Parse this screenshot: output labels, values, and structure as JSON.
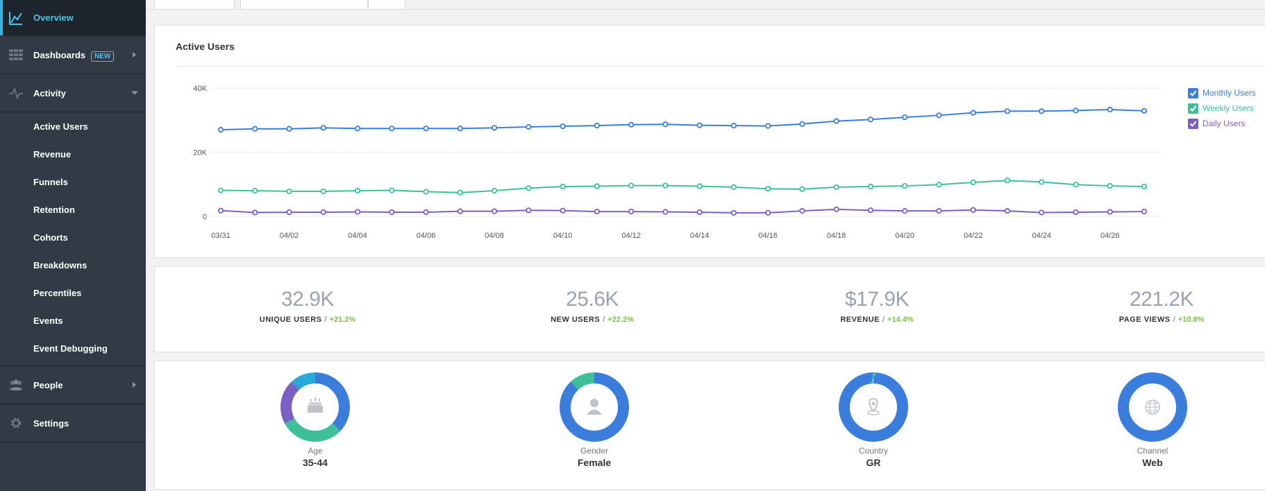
{
  "sidebar": {
    "overview": "Overview",
    "dashboards": "Dashboards",
    "dashboards_badge": "NEW",
    "activity": "Activity",
    "activity_items": [
      "Active Users",
      "Revenue",
      "Funnels",
      "Retention",
      "Cohorts",
      "Breakdowns",
      "Percentiles",
      "Events",
      "Event Debugging"
    ],
    "people": "People",
    "settings": "Settings"
  },
  "active_users": {
    "title": "Active Users",
    "legend": [
      {
        "label": "Monthly Users",
        "color": "#3b7ddd"
      },
      {
        "label": "Weekly Users",
        "color": "#3dbf9a"
      },
      {
        "label": "Daily Users",
        "color": "#7a5fc4"
      }
    ]
  },
  "chart_data": {
    "type": "line",
    "x": [
      "03/31",
      "04/01",
      "04/02",
      "04/03",
      "04/04",
      "04/05",
      "04/06",
      "04/07",
      "04/08",
      "04/09",
      "04/10",
      "04/11",
      "04/12",
      "04/13",
      "04/14",
      "04/15",
      "04/16",
      "04/17",
      "04/18",
      "04/19",
      "04/20",
      "04/21",
      "04/22",
      "04/23",
      "04/24",
      "04/25",
      "04/26",
      "04/27"
    ],
    "x_tick_labels": [
      "03/31",
      "04/02",
      "04/04",
      "04/06",
      "04/08",
      "04/10",
      "04/12",
      "04/14",
      "04/16",
      "04/18",
      "04/20",
      "04/22",
      "04/24",
      "04/26"
    ],
    "y_tick_labels": [
      "0",
      "20K",
      "40K"
    ],
    "ylim": [
      0,
      40000
    ],
    "grid": true,
    "legend_position": "right",
    "series": [
      {
        "name": "Monthly Users",
        "color": "#3b7ddd",
        "values": [
          27000,
          27300,
          27300,
          27600,
          27400,
          27400,
          27400,
          27400,
          27600,
          27900,
          28100,
          28300,
          28600,
          28700,
          28400,
          28300,
          28200,
          28800,
          29700,
          30200,
          30900,
          31500,
          32300,
          32800,
          32800,
          33000,
          33300,
          32900
        ]
      },
      {
        "name": "Weekly Users",
        "color": "#3dbf9a",
        "values": [
          8100,
          8000,
          7800,
          7800,
          8000,
          8100,
          7700,
          7400,
          8000,
          8800,
          9300,
          9400,
          9600,
          9600,
          9400,
          9100,
          8600,
          8500,
          9100,
          9300,
          9500,
          9900,
          10600,
          11200,
          10700,
          9900,
          9500,
          9300
        ]
      },
      {
        "name": "Daily Users",
        "color": "#7a5fc4",
        "values": [
          1800,
          1200,
          1300,
          1300,
          1400,
          1300,
          1300,
          1600,
          1600,
          1900,
          1800,
          1500,
          1500,
          1400,
          1300,
          1100,
          1100,
          1700,
          2200,
          1900,
          1700,
          1700,
          2000,
          1700,
          1200,
          1300,
          1400,
          1500
        ]
      }
    ]
  },
  "stats": [
    {
      "value": "32.9K",
      "label": "UNIQUE USERS",
      "change": "+21.2%"
    },
    {
      "value": "25.6K",
      "label": "NEW USERS",
      "change": "+22.2%"
    },
    {
      "value": "$17.9K",
      "label": "REVENUE",
      "change": "+14.4%"
    },
    {
      "value": "221.2K",
      "label": "PAGE VIEWS",
      "change": "+10.8%"
    }
  ],
  "stat_separator": "/",
  "colors": {
    "positive": "#7ac142",
    "accent": "#4dc3f0"
  },
  "breakdowns": [
    {
      "label": "Age",
      "value": "35-44",
      "icon": "cake-icon",
      "segments": [
        {
          "fraction": 0.37,
          "color": "#3b7ddd"
        },
        {
          "fraction": 0.3,
          "color": "#3dbf9a"
        },
        {
          "fraction": 0.21,
          "color": "#7a5fc4"
        },
        {
          "fraction": 0.12,
          "color": "#27a9d9"
        }
      ]
    },
    {
      "label": "Gender",
      "value": "Female",
      "icon": "person-icon",
      "segments": [
        {
          "fraction": 0.88,
          "color": "#3b7ddd"
        },
        {
          "fraction": 0.12,
          "color": "#3dbf9a"
        }
      ]
    },
    {
      "label": "Country",
      "value": "GR",
      "icon": "map-pin-icon",
      "segments": [
        {
          "fraction": 0.995,
          "color": "#3b7ddd"
        },
        {
          "fraction": 0.005,
          "color": "#3dbf9a"
        }
      ]
    },
    {
      "label": "Channel",
      "value": "Web",
      "icon": "globe-icon",
      "segments": [
        {
          "fraction": 1.0,
          "color": "#3b7ddd"
        }
      ]
    }
  ]
}
